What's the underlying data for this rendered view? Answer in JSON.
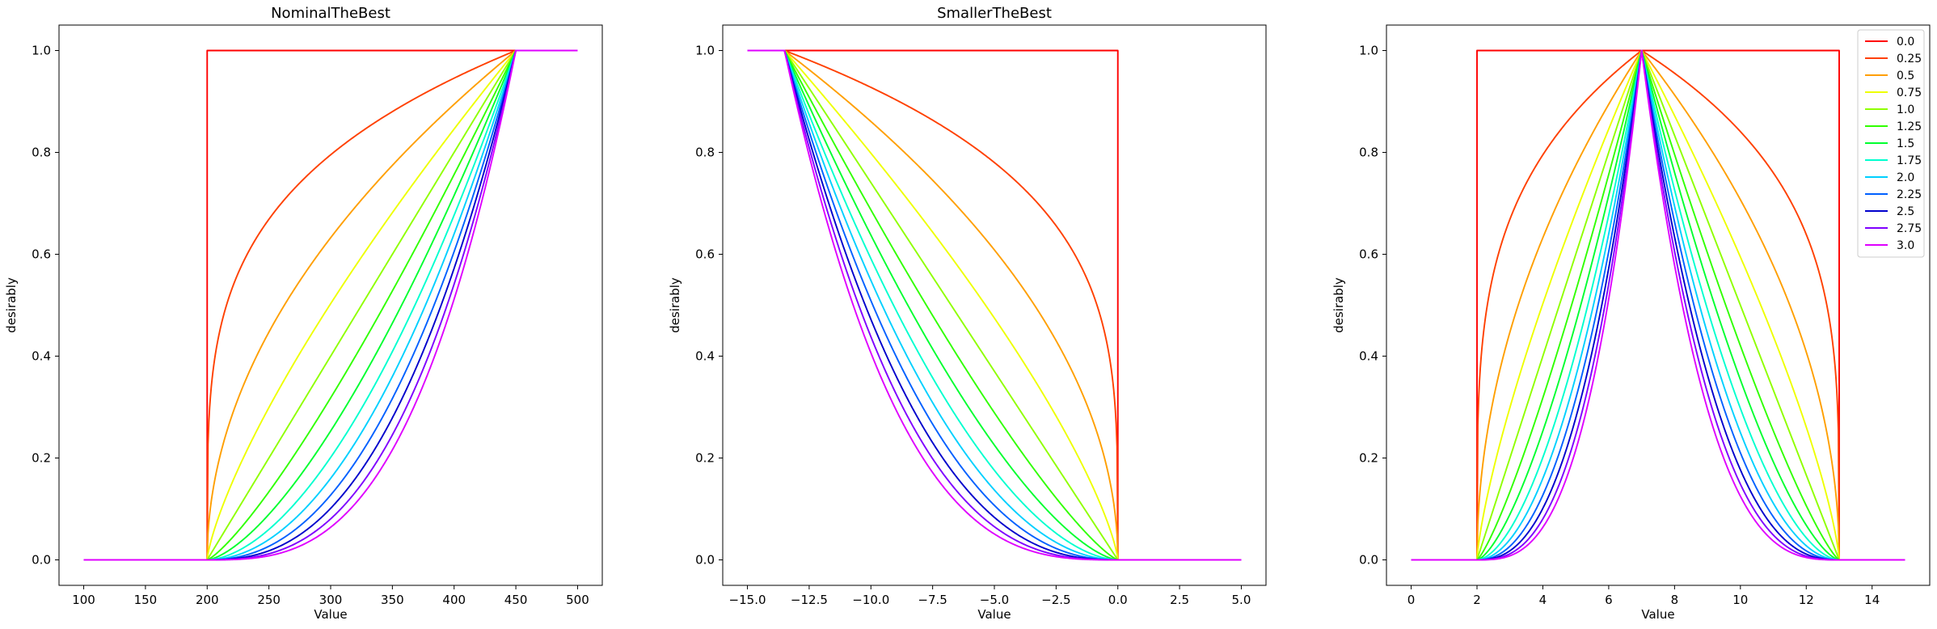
{
  "chart_data": [
    {
      "type": "line",
      "kind": "nominal",
      "title": "NominalTheBest",
      "xlabel": "Value",
      "ylabel": "desirably",
      "xlim": [
        80,
        520
      ],
      "ylim": [
        -0.05,
        1.05
      ],
      "xticks": [
        100,
        150,
        200,
        250,
        300,
        350,
        400,
        450,
        500
      ],
      "xtick_labels": [
        "100",
        "150",
        "200",
        "250",
        "300",
        "350",
        "400",
        "450",
        "500"
      ],
      "yticks": [
        0.0,
        0.2,
        0.4,
        0.6,
        0.8,
        1.0
      ],
      "ytick_labels": [
        "0.0",
        "0.2",
        "0.4",
        "0.6",
        "0.8",
        "1.0"
      ],
      "x_start": 100,
      "x_low": 200,
      "x_target": 450,
      "x_end": 500,
      "grid": false
    },
    {
      "type": "line",
      "kind": "smaller",
      "title": "SmallerTheBest",
      "xlabel": "Value",
      "ylabel": "desirably",
      "xlim": [
        -16,
        6
      ],
      "ylim": [
        -0.05,
        1.05
      ],
      "xticks": [
        -15.0,
        -12.5,
        -10.0,
        -7.5,
        -5.0,
        -2.5,
        0.0,
        2.5,
        5.0
      ],
      "xtick_labels": [
        "−15.0",
        "−12.5",
        "−10.0",
        "−7.5",
        "−5.0",
        "−2.5",
        "0.0",
        "2.5",
        "5.0"
      ],
      "yticks": [
        0.0,
        0.2,
        0.4,
        0.6,
        0.8,
        1.0
      ],
      "ytick_labels": [
        "0.0",
        "0.2",
        "0.4",
        "0.6",
        "0.8",
        "1.0"
      ],
      "x_start": -15,
      "x_target": -13.5,
      "x_high": 0,
      "x_end": 5,
      "grid": false
    },
    {
      "type": "line",
      "kind": "target",
      "title": "",
      "xlabel": "Value",
      "ylabel": "desirably",
      "xlim": [
        -0.75,
        15.75
      ],
      "ylim": [
        -0.05,
        1.05
      ],
      "xticks": [
        0,
        2,
        4,
        6,
        8,
        10,
        12,
        14
      ],
      "xtick_labels": [
        "0",
        "2",
        "4",
        "6",
        "8",
        "10",
        "12",
        "14"
      ],
      "yticks": [
        0.0,
        0.2,
        0.4,
        0.6,
        0.8,
        1.0
      ],
      "ytick_labels": [
        "0.0",
        "0.2",
        "0.4",
        "0.6",
        "0.8",
        "1.0"
      ],
      "x_start": 0,
      "x_low": 2,
      "x_target": 7,
      "x_high": 13,
      "x_end": 15,
      "legend": "top-right",
      "grid": false
    }
  ],
  "series": [
    {
      "name": "0.0",
      "exponent": 0.0,
      "color": "#ff0000"
    },
    {
      "name": "0.25",
      "exponent": 0.25,
      "color": "#ff4000"
    },
    {
      "name": "0.5",
      "exponent": 0.5,
      "color": "#ff9f00"
    },
    {
      "name": "0.75",
      "exponent": 0.75,
      "color": "#eeff00"
    },
    {
      "name": "1.0",
      "exponent": 1.0,
      "color": "#8fff00"
    },
    {
      "name": "1.25",
      "exponent": 1.25,
      "color": "#30ff00"
    },
    {
      "name": "1.5",
      "exponent": 1.5,
      "color": "#00ff2f"
    },
    {
      "name": "1.75",
      "exponent": 1.75,
      "color": "#00ffcf"
    },
    {
      "name": "2.0",
      "exponent": 2.0,
      "color": "#00d0ff"
    },
    {
      "name": "2.25",
      "exponent": 2.25,
      "color": "#0060ff"
    },
    {
      "name": "2.5",
      "exponent": 2.5,
      "color": "#0000cc"
    },
    {
      "name": "2.75",
      "exponent": 2.75,
      "color": "#7f00ff"
    },
    {
      "name": "3.0",
      "exponent": 3.0,
      "color": "#df00ff"
    }
  ]
}
